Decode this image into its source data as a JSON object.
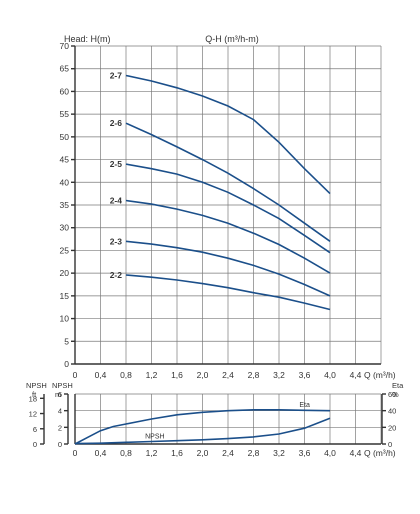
{
  "chart_data": [
    {
      "type": "line",
      "title": "Q-H (m³/h-m)",
      "ylabel": "Head: H(m)",
      "xlabel": "Q (m³/h)",
      "x_ticks": [
        "0",
        "0,4",
        "0,8",
        "1,2",
        "1,6",
        "2,0",
        "2,4",
        "2,8",
        "3,2",
        "3,6",
        "4,0",
        "4,4"
      ],
      "y_ticks": [
        "0",
        "5",
        "10",
        "15",
        "20",
        "25",
        "30",
        "35",
        "40",
        "45",
        "50",
        "55",
        "60",
        "65",
        "70"
      ],
      "xlim": [
        0,
        4.8
      ],
      "ylim": [
        0,
        70
      ],
      "grid": true,
      "line_color": "#1b4f8a",
      "series": [
        {
          "name": "2-7",
          "x": [
            0.8,
            1.2,
            1.6,
            2.0,
            2.4,
            2.8,
            3.2,
            3.6,
            4.0
          ],
          "y": [
            63.5,
            62.3,
            60.8,
            59.0,
            56.8,
            53.8,
            48.8,
            43.0,
            37.5
          ]
        },
        {
          "name": "2-6",
          "x": [
            0.8,
            1.2,
            1.6,
            2.0,
            2.4,
            2.8,
            3.2,
            3.6,
            4.0
          ],
          "y": [
            53.0,
            50.5,
            47.8,
            45.0,
            42.0,
            38.6,
            35.0,
            31.0,
            27.0
          ]
        },
        {
          "name": "2-5",
          "x": [
            0.8,
            1.2,
            1.6,
            2.0,
            2.4,
            2.8,
            3.2,
            3.6,
            4.0
          ],
          "y": [
            44.0,
            43.0,
            41.8,
            40.0,
            37.8,
            35.0,
            32.0,
            28.3,
            24.5
          ]
        },
        {
          "name": "2-4",
          "x": [
            0.8,
            1.2,
            1.6,
            2.0,
            2.4,
            2.8,
            3.2,
            3.6,
            4.0
          ],
          "y": [
            36.0,
            35.2,
            34.1,
            32.7,
            31.0,
            28.8,
            26.3,
            23.3,
            20.0
          ]
        },
        {
          "name": "2-3",
          "x": [
            0.8,
            1.2,
            1.6,
            2.0,
            2.4,
            2.8,
            3.2,
            3.6,
            4.0
          ],
          "y": [
            27.0,
            26.4,
            25.6,
            24.6,
            23.3,
            21.7,
            19.8,
            17.5,
            15.0
          ]
        },
        {
          "name": "2-2",
          "x": [
            0.8,
            1.2,
            1.6,
            2.0,
            2.4,
            2.8,
            3.2,
            3.6,
            4.0
          ],
          "y": [
            19.6,
            19.1,
            18.5,
            17.7,
            16.8,
            15.7,
            14.7,
            13.4,
            12.0
          ]
        }
      ]
    },
    {
      "type": "line",
      "xlabel": "Q (m³/h)",
      "x_ticks": [
        "0",
        "0,4",
        "0,8",
        "1,2",
        "1,6",
        "2,0",
        "2,4",
        "2,8",
        "3,2",
        "3,6",
        "4,0",
        "4,4"
      ],
      "xlim": [
        0,
        4.8
      ],
      "grid": true,
      "line_color": "#1b4f8a",
      "axis_ft": {
        "title": "NPSH",
        "unit": "ft",
        "ticks": [
          "0",
          "6",
          "12",
          "18"
        ],
        "range": [
          0,
          19.7
        ]
      },
      "axis_m": {
        "title": "NPSH",
        "unit": "m",
        "ticks": [
          "0",
          "2",
          "4",
          "6"
        ],
        "range": [
          0,
          6
        ]
      },
      "axis_eta": {
        "title": "Eta",
        "unit": "%",
        "ticks": [
          "0",
          "20",
          "40",
          "60"
        ],
        "range": [
          0,
          60
        ]
      },
      "series": [
        {
          "name": "Eta",
          "axis": "eta",
          "x": [
            0,
            0.2,
            0.4,
            0.6,
            0.8,
            1.2,
            1.6,
            2.0,
            2.4,
            2.8,
            3.2,
            3.6,
            4.0
          ],
          "y": [
            0,
            8,
            16,
            21,
            24,
            30,
            35,
            38,
            40,
            41,
            41,
            40.5,
            40
          ]
        },
        {
          "name": "NPSH",
          "axis": "m",
          "x": [
            0,
            0.4,
            0.8,
            1.2,
            1.6,
            2.0,
            2.4,
            2.8,
            3.2,
            3.6,
            4.0
          ],
          "y": [
            0.05,
            0.1,
            0.2,
            0.3,
            0.4,
            0.5,
            0.65,
            0.85,
            1.2,
            1.9,
            3.1
          ]
        }
      ]
    }
  ]
}
